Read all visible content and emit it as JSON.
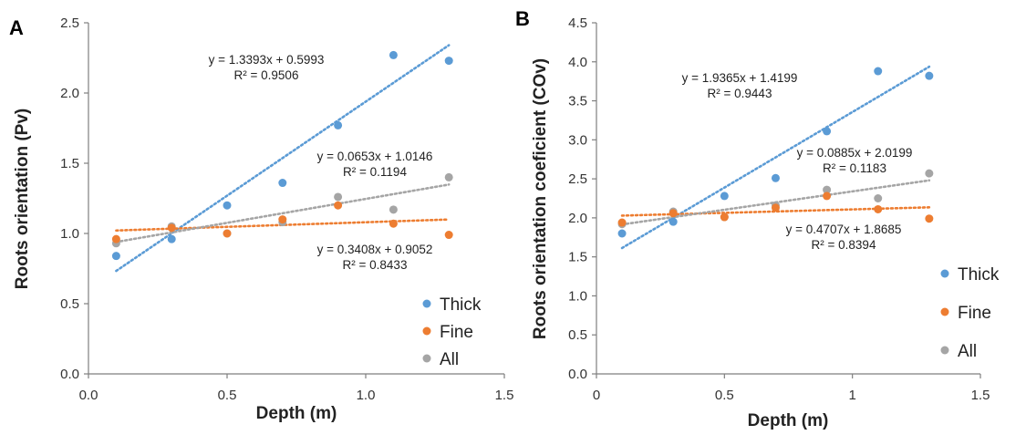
{
  "chart_data": [
    {
      "panel": "A",
      "type": "scatter",
      "xlabel": "Depth (m)",
      "ylabel": "Roots orientation (Pv)",
      "xlim": [
        0,
        1.5
      ],
      "ylim": [
        0,
        2.5
      ],
      "xticks": [
        "0.0",
        "0.5",
        "1.0",
        "1.5"
      ],
      "yticks": [
        "0.0",
        "0.5",
        "1.0",
        "1.5",
        "2.0",
        "2.5"
      ],
      "grid": false,
      "legend_position": "bottom-right",
      "series": [
        {
          "name": "Thick",
          "color": "#5B9BD5",
          "x": [
            0.1,
            0.3,
            0.5,
            0.7,
            0.9,
            1.1,
            1.3
          ],
          "y": [
            0.84,
            0.96,
            1.2,
            1.36,
            1.77,
            2.27,
            2.23
          ],
          "trend": {
            "slope": 1.3393,
            "intercept": 0.5993
          },
          "equation": "y = 1.3393x + 0.5993",
          "r2": "R² = 0.9506"
        },
        {
          "name": "Fine",
          "color": "#ED7D31",
          "x": [
            0.1,
            0.3,
            0.5,
            0.7,
            0.9,
            1.1,
            1.3
          ],
          "y": [
            0.96,
            1.04,
            1.0,
            1.1,
            1.2,
            1.07,
            0.99
          ],
          "trend": {
            "slope": 0.0653,
            "intercept": 1.0146
          },
          "equation": "y = 0.0653x + 1.0146",
          "r2": "R² = 0.1194"
        },
        {
          "name": "All",
          "color": "#A5A5A5",
          "x": [
            0.1,
            0.3,
            0.5,
            0.7,
            0.9,
            1.1,
            1.3
          ],
          "y": [
            0.93,
            1.05,
            1.0,
            1.08,
            1.26,
            1.17,
            1.4
          ],
          "trend": {
            "slope": 0.3408,
            "intercept": 0.9052
          },
          "equation": "y = 0.3408x + 0.9052",
          "r2": "R² = 0.8433"
        }
      ]
    },
    {
      "panel": "B",
      "type": "scatter",
      "xlabel": "Depth (m)",
      "ylabel": "Roots orientation coeficient (COv)",
      "xlim": [
        0,
        1.5
      ],
      "ylim": [
        0,
        4.5
      ],
      "xticks": [
        "0",
        "0.5",
        "1",
        "1.5"
      ],
      "yticks": [
        "0.0",
        "0.5",
        "1.0",
        "1.5",
        "2.0",
        "2.5",
        "3.0",
        "3.5",
        "4.0",
        "4.5"
      ],
      "grid": false,
      "legend_position": "bottom-right",
      "series": [
        {
          "name": "Thick",
          "color": "#5B9BD5",
          "x": [
            0.1,
            0.3,
            0.5,
            0.7,
            0.9,
            1.1,
            1.3
          ],
          "y": [
            1.8,
            1.95,
            2.28,
            2.51,
            3.11,
            3.88,
            3.82
          ],
          "trend": {
            "slope": 1.9365,
            "intercept": 1.4199
          },
          "equation": "y = 1.9365x + 1.4199",
          "r2": "R² = 0.9443"
        },
        {
          "name": "Fine",
          "color": "#ED7D31",
          "x": [
            0.1,
            0.3,
            0.5,
            0.7,
            0.9,
            1.1,
            1.3
          ],
          "y": [
            1.94,
            2.06,
            2.01,
            2.13,
            2.28,
            2.11,
            1.99
          ],
          "trend": {
            "slope": 0.0885,
            "intercept": 2.0199
          },
          "equation": "y = 0.0885x + 2.0199",
          "r2": "R² = 0.1183"
        },
        {
          "name": "All",
          "color": "#A5A5A5",
          "x": [
            0.1,
            0.3,
            0.5,
            0.7,
            0.9,
            1.1,
            1.3
          ],
          "y": [
            1.92,
            2.08,
            2.01,
            2.16,
            2.36,
            2.25,
            2.57
          ],
          "trend": {
            "slope": 0.4707,
            "intercept": 1.8685
          },
          "equation": "y = 0.4707x + 1.8685",
          "r2": "R² = 0.8394"
        }
      ]
    }
  ]
}
